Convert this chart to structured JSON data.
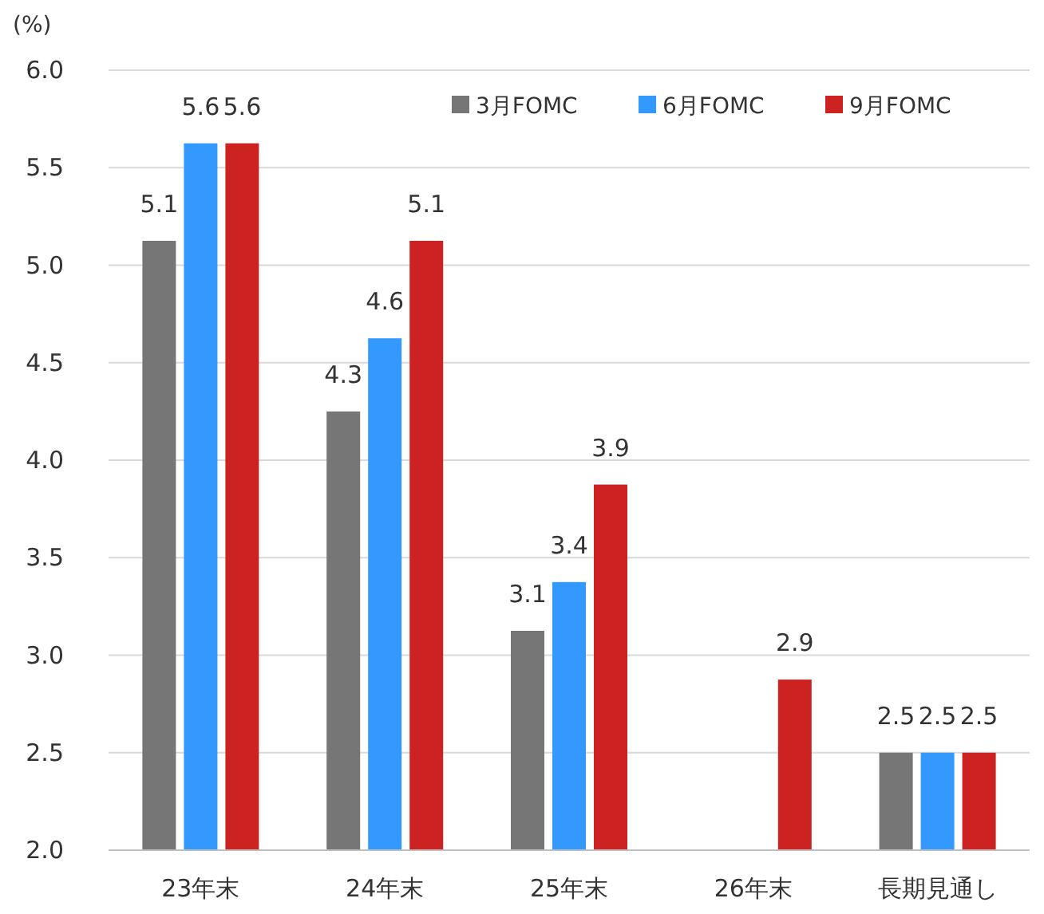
{
  "chart_data": {
    "type": "bar",
    "ylabel": "(%)",
    "categories": [
      "23年末",
      "24年末",
      "25年末",
      "26年末",
      "長期見通し"
    ],
    "series": [
      {
        "name": "3月FOMC",
        "color": "#767676",
        "values": [
          5.125,
          4.25,
          3.125,
          null,
          2.5
        ],
        "value_labels": [
          "5.1",
          "4.3",
          "3.1",
          null,
          "2.5"
        ]
      },
      {
        "name": "6月FOMC",
        "color": "#3399ff",
        "values": [
          5.625,
          4.625,
          3.375,
          null,
          2.5
        ],
        "value_labels": [
          "5.6",
          "4.6",
          "3.4",
          null,
          "2.5"
        ]
      },
      {
        "name": "9月FOMC",
        "color": "#cc2222",
        "values": [
          5.625,
          5.125,
          3.875,
          2.875,
          2.5
        ],
        "value_labels": [
          "5.6",
          "5.1",
          "3.9",
          "2.9",
          "2.5"
        ]
      }
    ],
    "ylim": [
      2.0,
      6.0
    ],
    "yticks": [
      {
        "value": 2.0,
        "label": "2.0"
      },
      {
        "value": 2.5,
        "label": "2.5"
      },
      {
        "value": 3.0,
        "label": "3.0"
      },
      {
        "value": 3.5,
        "label": "3.5"
      },
      {
        "value": 4.0,
        "label": "4.0"
      },
      {
        "value": 4.5,
        "label": "4.5"
      },
      {
        "value": 5.0,
        "label": "5.0"
      },
      {
        "value": 5.5,
        "label": "5.5"
      },
      {
        "value": 6.0,
        "label": "6.0"
      }
    ],
    "grid": "y",
    "legend": "top right"
  }
}
